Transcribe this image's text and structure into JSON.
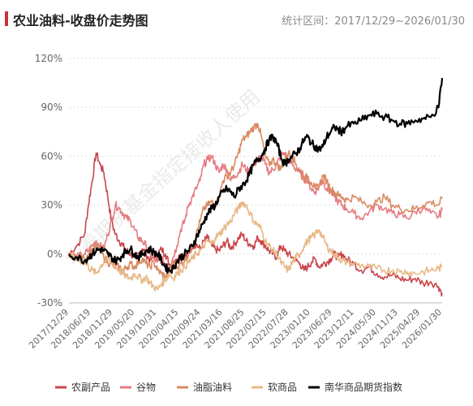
{
  "title": "农业油料-收盘价走势图",
  "range_text": "统计区间：2017/12/29~2026/01/30",
  "watermark": "华泰期货基金指定接收人使用",
  "chart_data": {
    "type": "line",
    "ylim": [
      -30,
      120
    ],
    "yticks": [
      -30,
      0,
      30,
      60,
      90,
      120
    ],
    "ytick_labels": [
      "-30%",
      "0%",
      "30%",
      "60%",
      "90%",
      "120%"
    ],
    "xticks": [
      "2017/12/29",
      "2018/06/19",
      "2018/11/29",
      "2019/05/20",
      "2019/10/31",
      "2020/04/15",
      "2020/09/24",
      "2021/03/16",
      "2021/08/25",
      "2022/02/15",
      "2022/07/28",
      "2023/01/10",
      "2023/06/29",
      "2023/12/11",
      "2024/05/30",
      "2024/11/13",
      "2025/04/29",
      "2026/01/30"
    ],
    "x": [
      "2017/12/29",
      "2018/03/01",
      "2018/05/01",
      "2018/06/01",
      "2018/07/01",
      "2018/08/01",
      "2018/09/01",
      "2018/10/01",
      "2018/11/01",
      "2018/12/01",
      "2019/01/01",
      "2019/02/01",
      "2019/03/01",
      "2019/04/01",
      "2019/05/01",
      "2019/06/01",
      "2019/07/01",
      "2019/08/01",
      "2019/09/01",
      "2019/10/01",
      "2019/11/01",
      "2019/12/01",
      "2020/01/01",
      "2020/02/01",
      "2020/03/01",
      "2020/04/01",
      "2020/05/01",
      "2020/06/01",
      "2020/07/01",
      "2020/08/01",
      "2020/09/01",
      "2020/10/01",
      "2020/11/01",
      "2020/12/01",
      "2021/01/01",
      "2021/02/01",
      "2021/03/01",
      "2021/04/01",
      "2021/05/01",
      "2021/06/01",
      "2021/07/01",
      "2021/08/01",
      "2021/09/01",
      "2021/10/01",
      "2021/11/01",
      "2021/12/01",
      "2022/01/01",
      "2022/02/01",
      "2022/03/01",
      "2022/04/01",
      "2022/05/01",
      "2022/06/01",
      "2022/07/01",
      "2022/08/01",
      "2022/09/01",
      "2022/10/01",
      "2022/11/01",
      "2022/12/01",
      "2023/01/01",
      "2023/02/01",
      "2023/03/01",
      "2023/04/01",
      "2023/05/01",
      "2023/06/01",
      "2023/07/01",
      "2023/08/01",
      "2023/09/01",
      "2023/10/01",
      "2023/11/01",
      "2023/12/01",
      "2024/01/01",
      "2024/03/01",
      "2024/05/01",
      "2024/07/01",
      "2024/09/01",
      "2024/11/01",
      "2025/01/01",
      "2025/03/01",
      "2025/05/01",
      "2025/07/01",
      "2025/09/01",
      "2025/11/01",
      "2026/01/01",
      "2026/01/30"
    ],
    "series": [
      {
        "name": "农副产品",
        "color": "#c8454a",
        "values": [
          0,
          5,
          12,
          30,
          45,
          62,
          55,
          50,
          35,
          20,
          12,
          8,
          5,
          2,
          0,
          -2,
          0,
          3,
          0,
          -4,
          -2,
          0,
          3,
          0,
          -6,
          -8,
          -3,
          0,
          -2,
          0,
          5,
          6,
          3,
          8,
          10,
          5,
          3,
          2,
          5,
          8,
          4,
          6,
          10,
          12,
          8,
          6,
          5,
          10,
          8,
          5,
          2,
          0,
          -2,
          5,
          2,
          0,
          -2,
          -4,
          -6,
          -10,
          -8,
          -5,
          -3,
          -8,
          -6,
          -5,
          -3,
          0,
          -2,
          0,
          -3,
          -6,
          -10,
          -8,
          -12,
          -14,
          -13,
          -15,
          -16,
          -15,
          -18,
          -17,
          -20,
          -24
        ]
      },
      {
        "name": "谷物",
        "color": "#e57b82",
        "values": [
          0,
          -2,
          0,
          2,
          5,
          8,
          5,
          3,
          12,
          20,
          30,
          28,
          25,
          22,
          20,
          15,
          10,
          8,
          5,
          0,
          -3,
          -5,
          -3,
          -6,
          -8,
          -2,
          5,
          15,
          20,
          30,
          35,
          40,
          45,
          55,
          58,
          60,
          55,
          50,
          55,
          52,
          45,
          48,
          50,
          55,
          52,
          50,
          55,
          58,
          60,
          55,
          50,
          52,
          55,
          60,
          62,
          58,
          55,
          52,
          50,
          48,
          45,
          40,
          38,
          42,
          45,
          40,
          38,
          35,
          32,
          30,
          28,
          25,
          22,
          26,
          30,
          28,
          25,
          24,
          22,
          26,
          28,
          25,
          23,
          27
        ]
      },
      {
        "name": "油脂油料",
        "color": "#d98a60",
        "values": [
          0,
          -2,
          -3,
          0,
          2,
          5,
          3,
          -2,
          -5,
          -6,
          -8,
          -8,
          -10,
          -8,
          -6,
          -8,
          -5,
          -3,
          -6,
          -8,
          -5,
          -10,
          -12,
          -14,
          -12,
          -5,
          -8,
          -6,
          -4,
          0,
          5,
          12,
          20,
          28,
          30,
          32,
          30,
          35,
          45,
          48,
          50,
          55,
          62,
          70,
          72,
          75,
          78,
          80,
          72,
          60,
          55,
          58,
          55,
          52,
          58,
          62,
          60,
          55,
          50,
          45,
          48,
          44,
          40,
          42,
          48,
          45,
          40,
          38,
          36,
          35,
          33,
          35,
          32,
          30,
          32,
          35,
          30,
          28,
          27,
          28,
          30,
          32,
          30,
          34
        ]
      },
      {
        "name": "软商品",
        "color": "#e8b887",
        "values": [
          0,
          -3,
          -5,
          -8,
          -10,
          -12,
          -8,
          -5,
          -3,
          -5,
          -8,
          -10,
          -12,
          -14,
          -15,
          -12,
          -14,
          -16,
          -14,
          -18,
          -20,
          -22,
          -18,
          -16,
          -12,
          -15,
          -12,
          -10,
          -8,
          -5,
          -3,
          0,
          2,
          5,
          8,
          6,
          10,
          12,
          15,
          18,
          20,
          25,
          28,
          32,
          30,
          25,
          20,
          18,
          15,
          8,
          5,
          2,
          0,
          -5,
          -8,
          -10,
          -5,
          -2,
          0,
          5,
          8,
          10,
          12,
          15,
          10,
          5,
          2,
          0,
          -2,
          -4,
          -5,
          -6,
          -7,
          -8,
          -9,
          -10,
          -10,
          -11,
          -11,
          -12,
          -11,
          -10,
          -9,
          -8
        ]
      },
      {
        "name": "南华商品期货指数",
        "color": "#000000",
        "values": [
          0,
          -2,
          -4,
          -2,
          0,
          2,
          3,
          2,
          0,
          -2,
          -4,
          -3,
          0,
          2,
          3,
          0,
          -2,
          0,
          2,
          3,
          1,
          0,
          -4,
          -8,
          -10,
          -9,
          -5,
          -2,
          0,
          2,
          5,
          10,
          15,
          20,
          25,
          28,
          30,
          35,
          38,
          40,
          38,
          35,
          40,
          42,
          45,
          50,
          55,
          58,
          60,
          65,
          70,
          72,
          68,
          60,
          55,
          58,
          60,
          62,
          65,
          70,
          72,
          68,
          66,
          64,
          66,
          72,
          75,
          78,
          76,
          75,
          78,
          80,
          82,
          85,
          86,
          84,
          82,
          80,
          80,
          82,
          83,
          84,
          90,
          108
        ]
      }
    ]
  }
}
